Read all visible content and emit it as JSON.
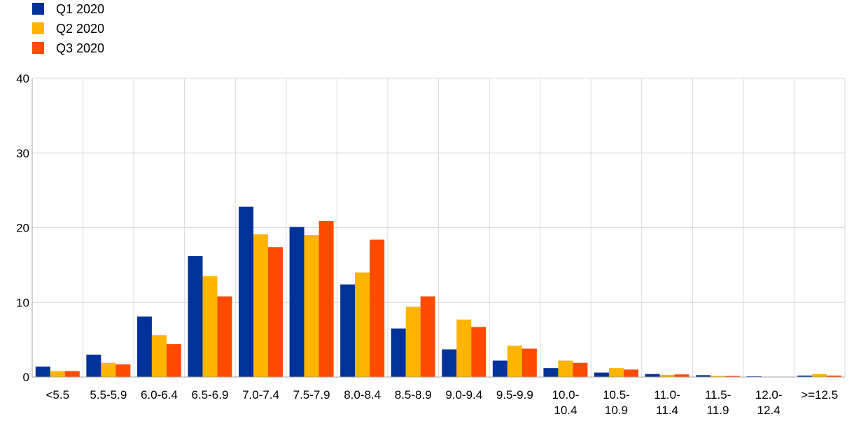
{
  "chart_data": {
    "type": "bar",
    "title": "",
    "xlabel": "",
    "ylabel": "",
    "ylim": [
      0,
      40
    ],
    "yticks": [
      0,
      10,
      20,
      30,
      40
    ],
    "grid": true,
    "legend_position": "top-left",
    "categories": [
      [
        "<5.5"
      ],
      [
        "5.5-5.9"
      ],
      [
        "6.0-6.4"
      ],
      [
        "6.5-6.9"
      ],
      [
        "7.0-7.4"
      ],
      [
        "7.5-7.9"
      ],
      [
        "8.0-8.4"
      ],
      [
        "8.5-8.9"
      ],
      [
        "9.0-9.4"
      ],
      [
        "9.5-9.9"
      ],
      [
        "10.0-",
        "10.4"
      ],
      [
        "10.5-",
        "10.9"
      ],
      [
        "11.0-",
        "11.4"
      ],
      [
        "11.5-",
        "11.9"
      ],
      [
        "12.0-",
        "12.4"
      ],
      [
        ">=12.5"
      ]
    ],
    "series": [
      {
        "name": "Q1 2020",
        "color": "#003299",
        "values": [
          1.4,
          3.0,
          8.1,
          16.2,
          22.8,
          20.1,
          12.4,
          6.5,
          3.7,
          2.2,
          1.2,
          0.6,
          0.4,
          0.25,
          0.1,
          0.2
        ]
      },
      {
        "name": "Q2 2020",
        "color": "#FFB400",
        "values": [
          0.8,
          1.9,
          5.6,
          13.5,
          19.1,
          19.0,
          14.0,
          9.4,
          7.7,
          4.2,
          2.2,
          1.2,
          0.3,
          0.15,
          0.05,
          0.4
        ]
      },
      {
        "name": "Q3 2020",
        "color": "#FF4B00",
        "values": [
          0.8,
          1.7,
          4.4,
          10.8,
          17.4,
          20.9,
          18.4,
          10.8,
          6.7,
          3.8,
          1.9,
          1.0,
          0.35,
          0.15,
          0.05,
          0.2
        ]
      }
    ]
  }
}
